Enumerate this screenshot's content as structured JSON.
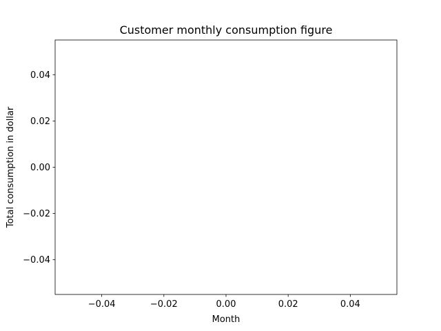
{
  "chart_data": {
    "type": "line",
    "title": "Customer monthly consumption figure",
    "xlabel": "Month",
    "ylabel": "Total consumption in dollar",
    "xlim": [
      -0.055,
      0.055
    ],
    "ylim": [
      -0.055,
      0.055
    ],
    "x_ticks": [
      -0.04,
      -0.02,
      0.0,
      0.02,
      0.04
    ],
    "x_tick_labels": [
      "−0.04",
      "−0.02",
      "0.00",
      "0.02",
      "0.04"
    ],
    "y_ticks": [
      -0.04,
      -0.02,
      0.0,
      0.02,
      0.04
    ],
    "y_tick_labels": [
      "−0.04",
      "−0.02",
      "0.00",
      "0.02",
      "0.04"
    ],
    "grid": false,
    "legend": "none",
    "series": []
  }
}
